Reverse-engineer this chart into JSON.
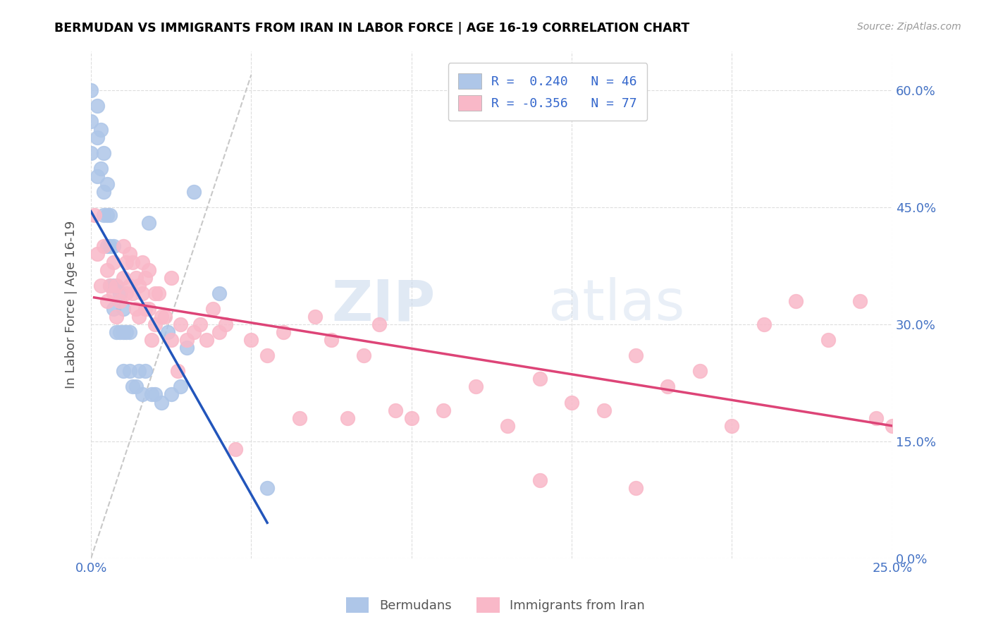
{
  "title": "BERMUDAN VS IMMIGRANTS FROM IRAN IN LABOR FORCE | AGE 16-19 CORRELATION CHART",
  "source": "Source: ZipAtlas.com",
  "ylabel": "In Labor Force | Age 16-19",
  "xlim": [
    0.0,
    0.25
  ],
  "ylim": [
    0.0,
    0.65
  ],
  "xticks": [
    0.0,
    0.05,
    0.1,
    0.15,
    0.2,
    0.25
  ],
  "yticks": [
    0.0,
    0.15,
    0.3,
    0.45,
    0.6
  ],
  "ytick_labels_right": [
    "0.0%",
    "15.0%",
    "30.0%",
    "45.0%",
    "60.0%"
  ],
  "xtick_labels": [
    "0.0%",
    "",
    "",
    "",
    "",
    "25.0%"
  ],
  "legend_entries": [
    {
      "label": "R =  0.240   N = 46",
      "color": "#aec6e8"
    },
    {
      "label": "R = -0.356   N = 77",
      "color": "#f4b8c8"
    }
  ],
  "bottom_legend": [
    "Bermudans",
    "Immigrants from Iran"
  ],
  "blue_scatter_color": "#aec6e8",
  "pink_scatter_color": "#f9b8c8",
  "blue_line_color": "#2255bb",
  "pink_line_color": "#dd4477",
  "diagonal_color": "#c8c8c8",
  "watermark_zip": "ZIP",
  "watermark_atlas": "atlas",
  "blue_points_x": [
    0.0,
    0.0,
    0.0,
    0.002,
    0.002,
    0.002,
    0.003,
    0.003,
    0.004,
    0.004,
    0.004,
    0.005,
    0.005,
    0.005,
    0.006,
    0.006,
    0.006,
    0.007,
    0.007,
    0.007,
    0.008,
    0.008,
    0.009,
    0.009,
    0.01,
    0.01,
    0.01,
    0.011,
    0.012,
    0.012,
    0.013,
    0.014,
    0.015,
    0.016,
    0.017,
    0.018,
    0.019,
    0.02,
    0.022,
    0.024,
    0.025,
    0.028,
    0.03,
    0.032,
    0.04,
    0.055
  ],
  "blue_points_y": [
    0.6,
    0.56,
    0.52,
    0.58,
    0.54,
    0.49,
    0.55,
    0.5,
    0.52,
    0.47,
    0.44,
    0.48,
    0.44,
    0.4,
    0.44,
    0.4,
    0.35,
    0.4,
    0.35,
    0.32,
    0.35,
    0.29,
    0.34,
    0.29,
    0.32,
    0.29,
    0.24,
    0.29,
    0.29,
    0.24,
    0.22,
    0.22,
    0.24,
    0.21,
    0.24,
    0.43,
    0.21,
    0.21,
    0.2,
    0.29,
    0.21,
    0.22,
    0.27,
    0.47,
    0.34,
    0.09
  ],
  "pink_points_x": [
    0.001,
    0.002,
    0.003,
    0.004,
    0.005,
    0.005,
    0.006,
    0.007,
    0.007,
    0.008,
    0.008,
    0.009,
    0.01,
    0.01,
    0.011,
    0.011,
    0.012,
    0.012,
    0.013,
    0.013,
    0.014,
    0.014,
    0.015,
    0.015,
    0.016,
    0.016,
    0.017,
    0.017,
    0.018,
    0.018,
    0.019,
    0.02,
    0.02,
    0.021,
    0.022,
    0.023,
    0.025,
    0.025,
    0.027,
    0.028,
    0.03,
    0.032,
    0.034,
    0.036,
    0.038,
    0.04,
    0.042,
    0.045,
    0.05,
    0.055,
    0.06,
    0.065,
    0.07,
    0.075,
    0.08,
    0.085,
    0.09,
    0.095,
    0.1,
    0.11,
    0.12,
    0.13,
    0.14,
    0.15,
    0.16,
    0.17,
    0.18,
    0.19,
    0.2,
    0.21,
    0.22,
    0.23,
    0.24,
    0.245,
    0.25,
    0.14,
    0.17
  ],
  "pink_points_y": [
    0.44,
    0.39,
    0.35,
    0.4,
    0.37,
    0.33,
    0.35,
    0.38,
    0.34,
    0.35,
    0.31,
    0.33,
    0.4,
    0.36,
    0.38,
    0.34,
    0.39,
    0.35,
    0.38,
    0.34,
    0.36,
    0.32,
    0.35,
    0.31,
    0.38,
    0.34,
    0.36,
    0.32,
    0.37,
    0.32,
    0.28,
    0.34,
    0.3,
    0.34,
    0.31,
    0.31,
    0.36,
    0.28,
    0.24,
    0.3,
    0.28,
    0.29,
    0.3,
    0.28,
    0.32,
    0.29,
    0.3,
    0.14,
    0.28,
    0.26,
    0.29,
    0.18,
    0.31,
    0.28,
    0.18,
    0.26,
    0.3,
    0.19,
    0.18,
    0.19,
    0.22,
    0.17,
    0.23,
    0.2,
    0.19,
    0.26,
    0.22,
    0.24,
    0.17,
    0.3,
    0.33,
    0.28,
    0.33,
    0.18,
    0.17,
    0.1,
    0.09
  ]
}
